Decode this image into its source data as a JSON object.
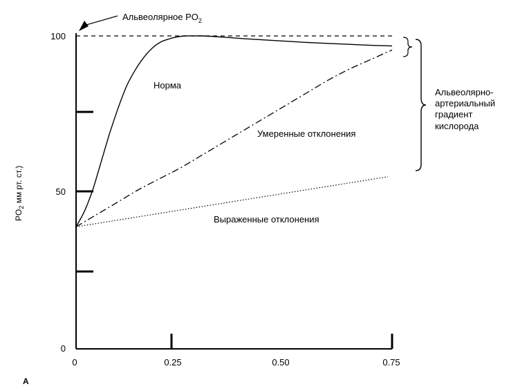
{
  "chart_data": {
    "type": "line",
    "xlim": [
      0,
      0.75
    ],
    "ylim": [
      0,
      100
    ],
    "x_ticks": [
      "0",
      "0.25",
      "0.50",
      "0.75"
    ],
    "y_ticks": [
      "0",
      "50",
      "100"
    ],
    "ylabel_main": "PO",
    "ylabel_sub": "2",
    "ylabel_rest": " мм рт. ст.)",
    "reference_line": {
      "label_main": "Альвеолярное PO",
      "label_sub": "2",
      "y": 100
    },
    "series": [
      {
        "label": "Норма",
        "style": "solid",
        "x": [
          0,
          0.02,
          0.04,
          0.06,
          0.08,
          0.1,
          0.12,
          0.14,
          0.16,
          0.18,
          0.2,
          0.22,
          0.24,
          0.26,
          0.28,
          0.3,
          0.35,
          0.4,
          0.45,
          0.5,
          0.55,
          0.6,
          0.65,
          0.7,
          0.75
        ],
        "y": [
          39,
          44,
          51,
          60,
          69,
          77,
          84,
          89,
          93,
          96,
          98,
          99,
          99.7,
          100,
          100,
          100,
          99.6,
          99.1,
          98.7,
          98.3,
          97.9,
          97.6,
          97.3,
          97.0,
          96.8
        ]
      },
      {
        "label": "Умеренные отклонения",
        "style": "dashdot",
        "x": [
          0,
          0.05,
          0.1,
          0.15,
          0.2,
          0.25,
          0.3,
          0.35,
          0.4,
          0.45,
          0.5,
          0.55,
          0.6,
          0.65,
          0.7,
          0.75
        ],
        "y": [
          39,
          43,
          47,
          51,
          54.5,
          58,
          62,
          66,
          70,
          74,
          78,
          82,
          86,
          89.5,
          92.5,
          95.5
        ]
      },
      {
        "label": "Выраженные отклонения",
        "style": "dotted",
        "x": [
          0,
          0.74
        ],
        "y": [
          39,
          55
        ]
      }
    ],
    "bracket_top_label": "",
    "gradient_label_lines": [
      "Альвеолярно-",
      "артериальный",
      "градиент",
      "кислорода"
    ],
    "panel_letter": "A"
  }
}
